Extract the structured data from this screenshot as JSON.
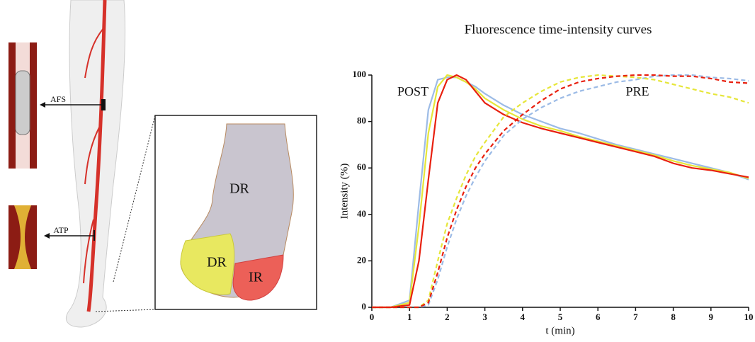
{
  "illustration": {
    "labels": [
      "AFS",
      "ATP",
      "DR",
      "DR",
      "IR"
    ]
  },
  "chart_data": {
    "type": "line",
    "title": "Fluorescence time-intensity curves",
    "xlabel": "t (min)",
    "ylabel": "Intensity (%)",
    "annotations": [
      "POST",
      "PRE"
    ],
    "x": [
      0,
      0.5,
      1,
      1.25,
      1.5,
      1.75,
      2,
      2.25,
      2.5,
      2.75,
      3,
      3.5,
      4,
      4.5,
      5,
      5.5,
      6,
      6.5,
      7,
      7.5,
      8,
      8.5,
      9,
      9.5,
      10
    ],
    "series": [
      {
        "color": "#9cbbe6",
        "style": "solid",
        "values": [
          0,
          0,
          3,
          45,
          85,
          98,
          99,
          99,
          97,
          95,
          92,
          87,
          83,
          80,
          77,
          75,
          72.5,
          70,
          68,
          66,
          64,
          62,
          60,
          58,
          55
        ]
      },
      {
        "color": "#e6e63a",
        "style": "solid",
        "values": [
          0,
          0,
          2,
          35,
          75,
          95,
          100,
          99,
          97,
          94,
          90,
          85,
          81,
          78,
          76,
          73.5,
          71.5,
          69.5,
          67.5,
          65.5,
          63,
          61,
          59.5,
          58,
          55.5
        ]
      },
      {
        "color": "#e8200f",
        "style": "solid",
        "values": [
          0,
          0,
          1,
          20,
          55,
          88,
          98,
          100,
          98,
          93,
          88,
          83,
          79.5,
          77,
          75,
          73,
          71,
          69,
          67,
          65,
          62,
          60,
          59,
          57.5,
          56
        ]
      },
      {
        "color": "#9cbbe6",
        "style": "dashed",
        "values": [
          0,
          0,
          0,
          0,
          1,
          12,
          26,
          38,
          48,
          56,
          63,
          74,
          81,
          86,
          90,
          93,
          95,
          97,
          98,
          99.5,
          100,
          100,
          99,
          98.5,
          97.5
        ]
      },
      {
        "color": "#e6e63a",
        "style": "dashed",
        "values": [
          0,
          0,
          0,
          0,
          3,
          20,
          36,
          47,
          57,
          65,
          71,
          82,
          88,
          93,
          97,
          99,
          100,
          99.5,
          99,
          98,
          96,
          94,
          92,
          90.5,
          88
        ]
      },
      {
        "color": "#e8200f",
        "style": "dashed",
        "values": [
          0,
          0,
          0,
          0,
          2,
          15,
          30,
          42,
          52,
          60,
          66,
          76,
          83,
          89,
          94,
          97,
          98.5,
          99.5,
          100,
          100,
          99.5,
          99.5,
          98.5,
          97,
          96.5
        ]
      }
    ],
    "xlim": [
      0,
      10
    ],
    "xticks": [
      0,
      1,
      2,
      3,
      4,
      5,
      6,
      7,
      8,
      9,
      10
    ],
    "ylim": [
      0,
      100
    ],
    "yticks": [
      0,
      20,
      40,
      60,
      80,
      100
    ]
  }
}
